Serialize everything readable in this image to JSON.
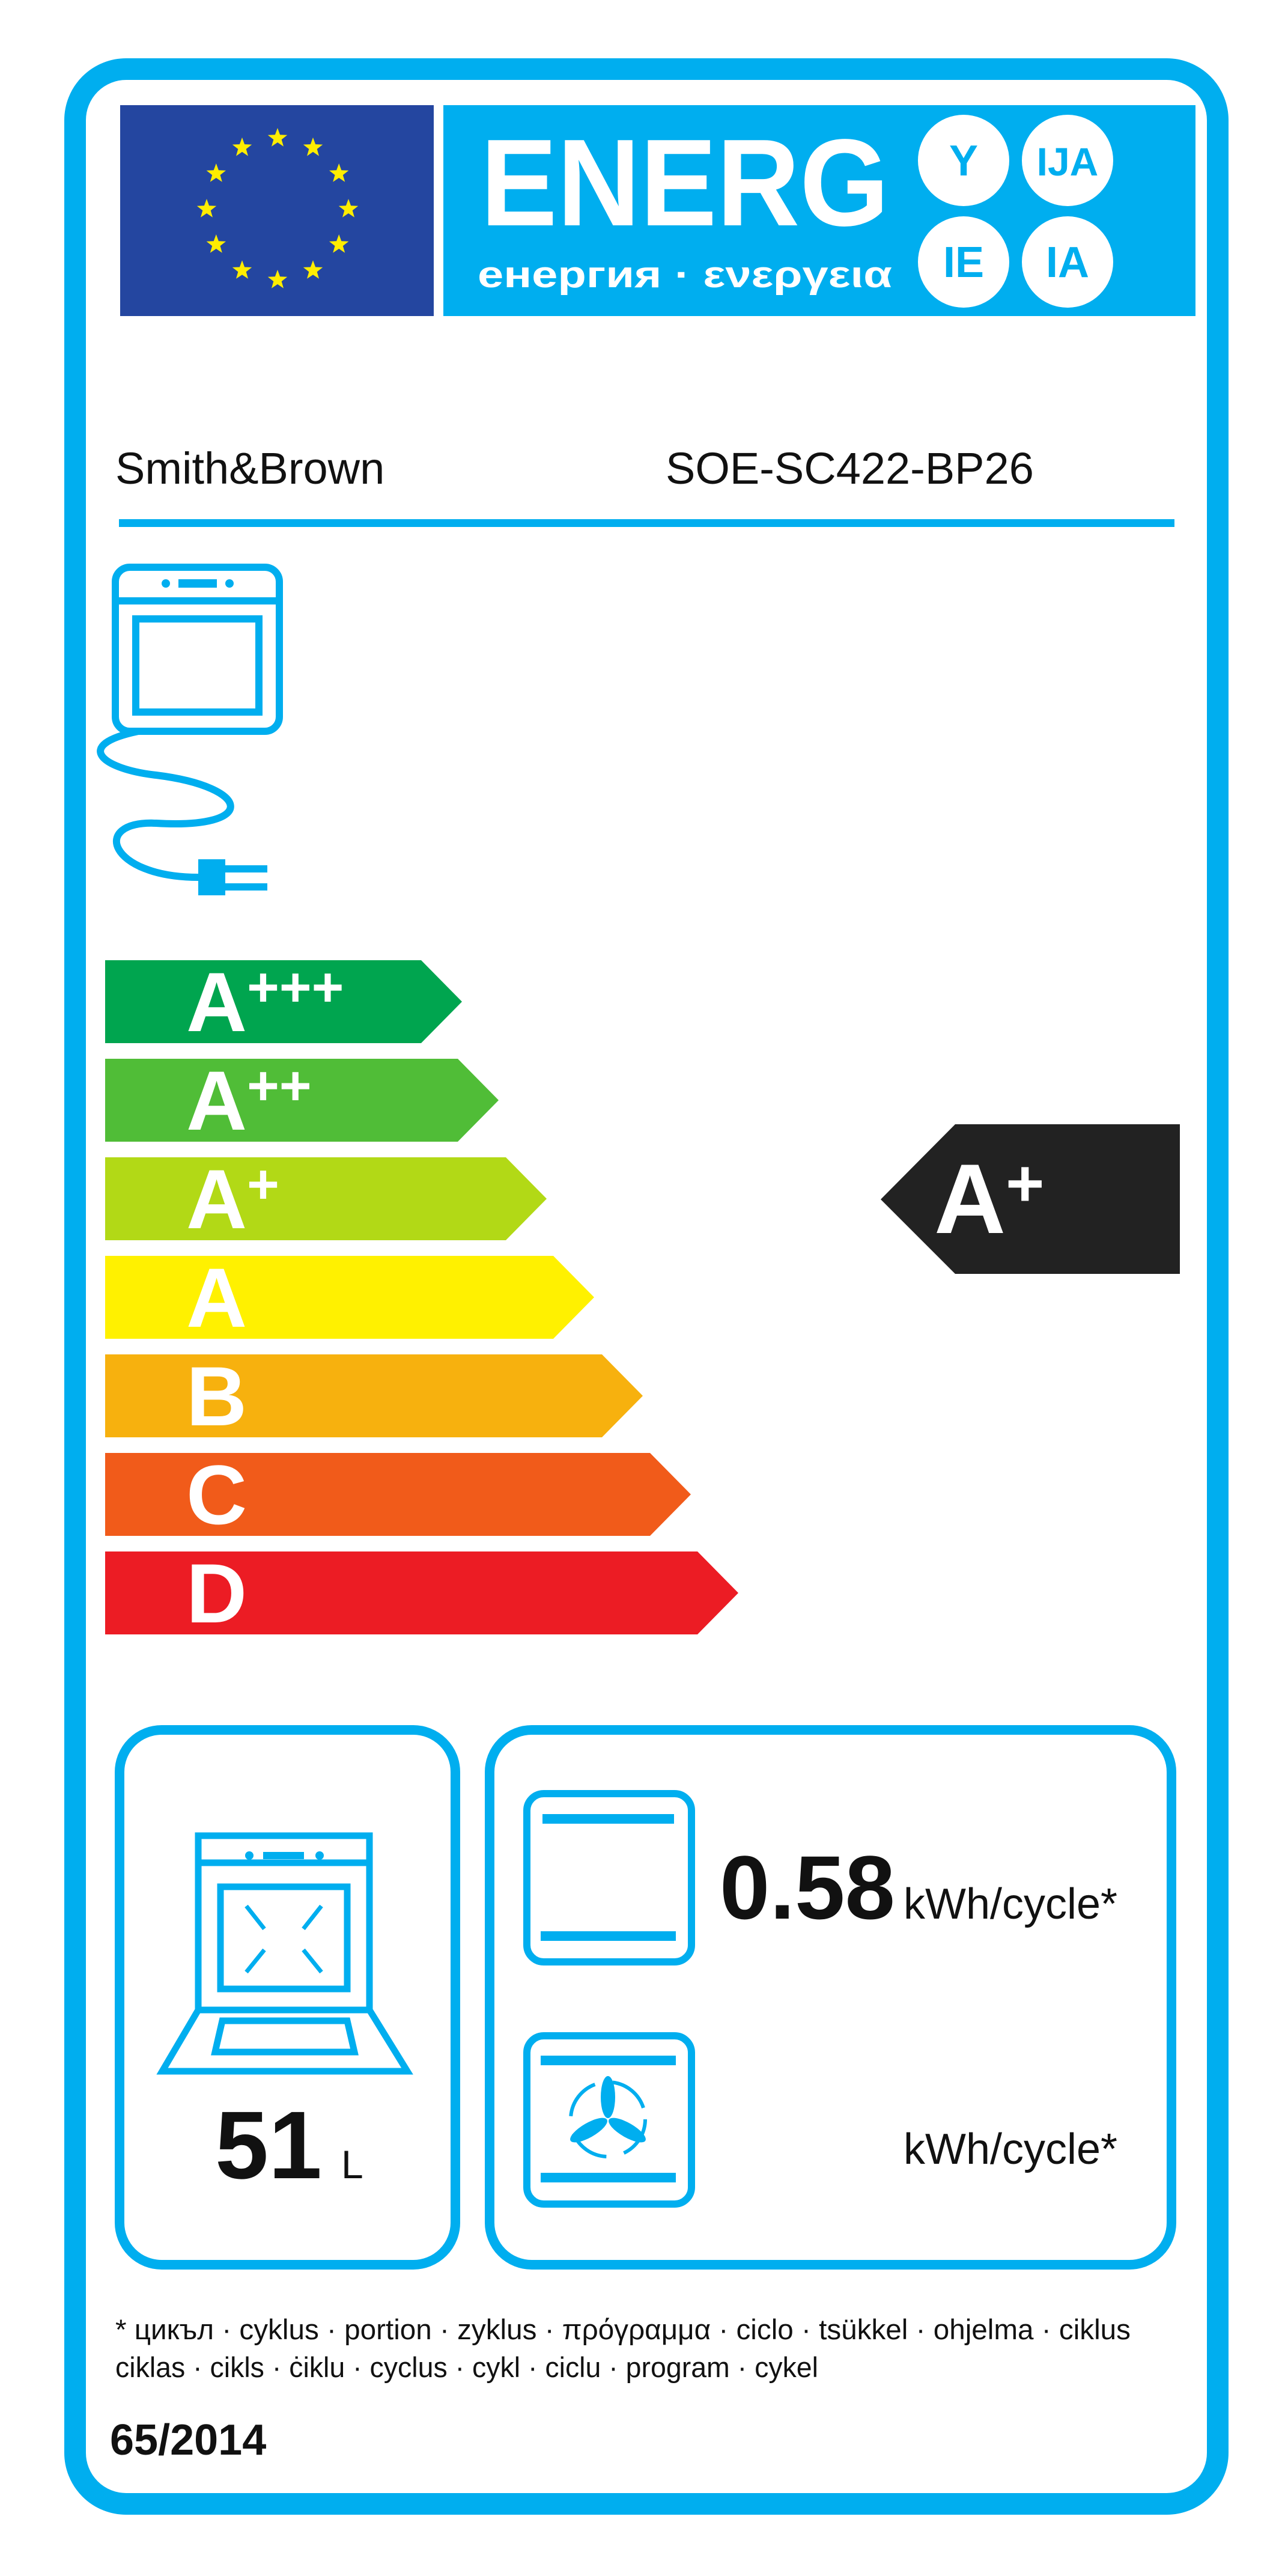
{
  "header": {
    "energy_word": "ENERG",
    "energy_subtitle": "енергия · ενεργεια",
    "circles": [
      "Y",
      "IJA",
      "IE",
      "IA"
    ],
    "eu_flag_icon": "eu-flag-icon"
  },
  "supplier": {
    "brand": "Smith&Brown",
    "model": "SOE-SC422-BP26"
  },
  "scale": {
    "classes": [
      {
        "letter": "A",
        "sup": "+++",
        "color": "#00a54f"
      },
      {
        "letter": "A",
        "sup": "++",
        "color": "#50bd37"
      },
      {
        "letter": "A",
        "sup": "+",
        "color": "#b2d916"
      },
      {
        "letter": "A",
        "sup": "",
        "color": "#fff100"
      },
      {
        "letter": "B",
        "sup": "",
        "color": "#f7b10e"
      },
      {
        "letter": "C",
        "sup": "",
        "color": "#f15b1a"
      },
      {
        "letter": "D",
        "sup": "",
        "color": "#ec1c24"
      }
    ],
    "rating": {
      "letter": "A",
      "sup": "+",
      "color": "#222222",
      "class_index": 2
    }
  },
  "volume": {
    "value": "51",
    "unit": "L"
  },
  "consumption": {
    "conventional": {
      "value": "0.58",
      "unit": "kWh/cycle*"
    },
    "fan_forced": {
      "value": "",
      "unit": "kWh/cycle*"
    }
  },
  "footnote": {
    "line1": "* цикъл · cyklus · portion · zyklus · πρόγραμμα · ciclo · tsükkel · ohjelma · ciklus",
    "line2": "ciklas · cikls · ċiklu · cyclus · cykl · ciclu · program · cykel"
  },
  "regulation": "65/2014",
  "colors": {
    "frame": "#00aeef",
    "eu_blue": "#2446a0",
    "star": "#ffed00"
  }
}
